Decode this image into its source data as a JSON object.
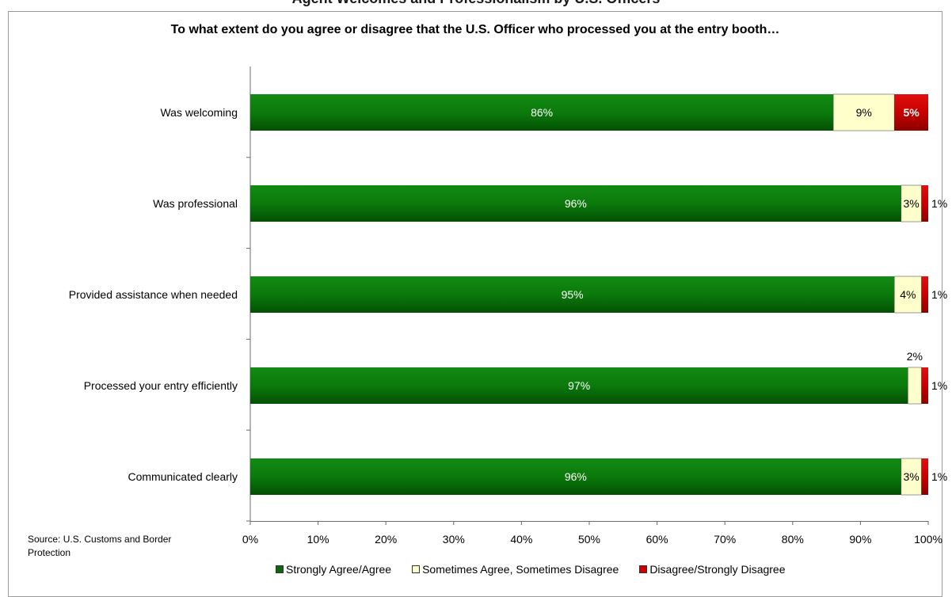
{
  "top_title": "Agent Welcomes and Professionalism by U.S. Officers",
  "chart_data": {
    "type": "bar",
    "orientation": "horizontal",
    "stacked": true,
    "title": "To what extent do you agree or disagree that the U.S. Officer who processed you at the entry booth…",
    "categories": [
      "Was welcoming",
      "Was professional",
      "Provided assistance when needed",
      "Processed your entry efficiently",
      "Communicated clearly"
    ],
    "series": [
      {
        "name": "Strongly Agree/Agree",
        "values": [
          86,
          96,
          95,
          97,
          96
        ],
        "labels": [
          "86%",
          "96%",
          "95%",
          "97%",
          "96%"
        ],
        "color": "#0a7a0a"
      },
      {
        "name": "Sometimes Agree, Sometimes Disagree",
        "values": [
          9,
          3,
          4,
          2,
          3
        ],
        "labels": [
          "9%",
          "3%",
          "4%",
          "2%",
          "3%"
        ],
        "color": "#ffffcc"
      },
      {
        "name": "Disagree/Strongly Disagree",
        "values": [
          5,
          1,
          1,
          1,
          1
        ],
        "labels": [
          "5%",
          "1%",
          "1%",
          "1%",
          "1%"
        ],
        "color": "#cc0000"
      }
    ],
    "xlim": [
      0,
      100
    ],
    "x_ticks": [
      "0%",
      "10%",
      "20%",
      "30%",
      "40%",
      "50%",
      "60%",
      "70%",
      "80%",
      "90%",
      "100%"
    ],
    "legend_position": "bottom",
    "grid": false
  },
  "source_note": "Source: U.S. Customs and Border Protection"
}
